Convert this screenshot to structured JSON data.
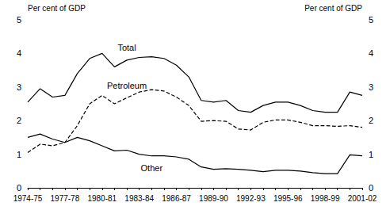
{
  "chart_data": {
    "type": "line",
    "y_label": "Per cent of GDP",
    "y2_label": "Per cent of GDP",
    "categories": [
      "1974-75",
      null,
      null,
      "1977-78",
      null,
      null,
      "1980-81",
      null,
      null,
      "1983-84",
      null,
      null,
      "1986-87",
      null,
      null,
      "1989-90",
      null,
      null,
      "1992-93",
      null,
      null,
      "1995-96",
      null,
      null,
      "1998-99",
      null,
      null,
      "2001-02"
    ],
    "series": [
      {
        "name": "Total",
        "color": "#000000",
        "line_style": "solid",
        "values": [
          2.55,
          2.95,
          2.7,
          2.75,
          3.4,
          3.85,
          4.0,
          3.6,
          3.8,
          3.88,
          3.9,
          3.85,
          3.65,
          3.3,
          2.6,
          2.55,
          2.6,
          2.3,
          2.25,
          2.45,
          2.55,
          2.55,
          2.45,
          2.3,
          2.25,
          2.25,
          2.85,
          2.75
        ]
      },
      {
        "name": "Petroleum",
        "color": "#000000",
        "line_style": "dashed",
        "values": [
          1.05,
          1.3,
          1.25,
          1.35,
          1.85,
          2.5,
          2.75,
          2.5,
          2.68,
          2.85,
          2.92,
          2.88,
          2.7,
          2.45,
          1.98,
          2.0,
          1.98,
          1.75,
          1.72,
          1.95,
          2.02,
          2.02,
          1.95,
          1.85,
          1.85,
          1.83,
          1.85,
          1.8
        ]
      },
      {
        "name": "Other",
        "color": "#000000",
        "line_style": "solid",
        "values": [
          1.5,
          1.6,
          1.45,
          1.35,
          1.5,
          1.4,
          1.25,
          1.1,
          1.12,
          1.0,
          0.95,
          0.95,
          0.92,
          0.85,
          0.62,
          0.55,
          0.57,
          0.55,
          0.52,
          0.48,
          0.52,
          0.52,
          0.5,
          0.45,
          0.42,
          0.42,
          0.98,
          0.95
        ]
      }
    ],
    "ylim": [
      0,
      5
    ],
    "yticks": [
      0,
      1,
      2,
      3,
      4,
      5
    ],
    "y2lim": [
      0,
      5
    ],
    "y2ticks": [
      0,
      1,
      2,
      3,
      4,
      5
    ],
    "grid": false
  }
}
